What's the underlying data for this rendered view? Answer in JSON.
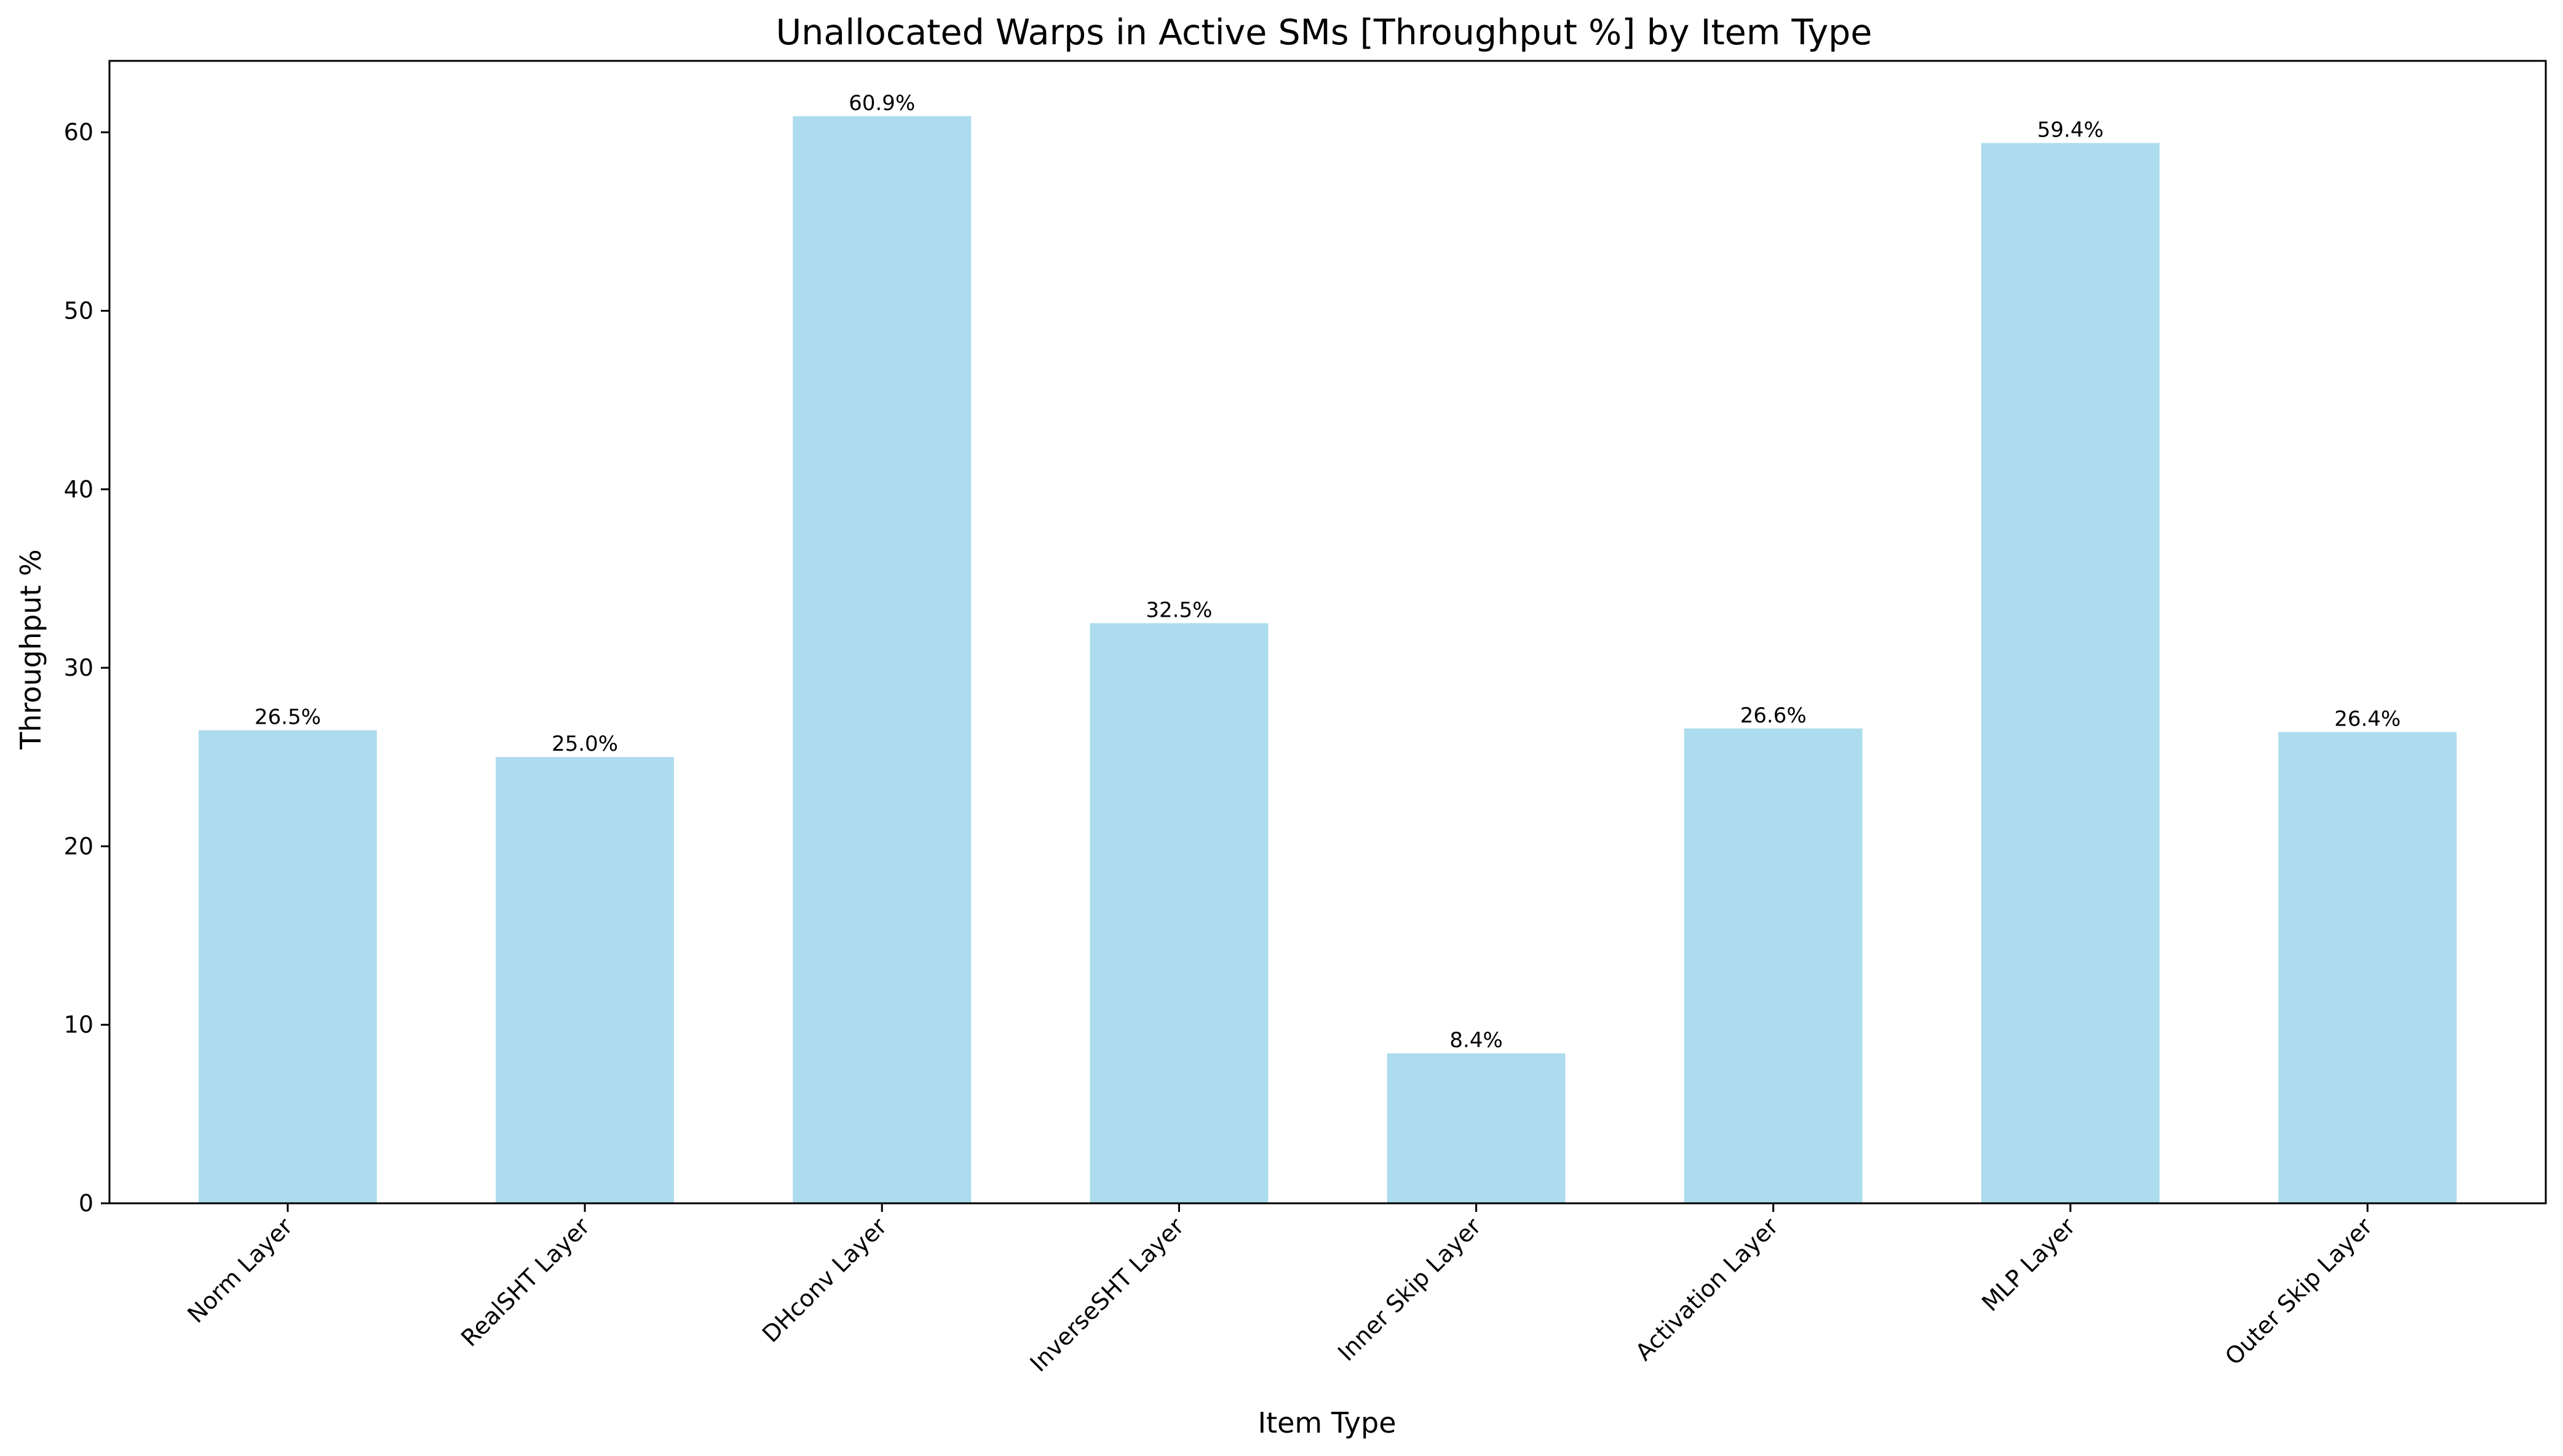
{
  "chart_data": {
    "type": "bar",
    "title": "Unallocated Warps in Active SMs [Throughput %] by Item Type",
    "xlabel": "Item Type",
    "ylabel": "Throughput %",
    "categories": [
      "Norm Layer",
      "RealSHT Layer",
      "DHconv Layer",
      "InverseSHT Layer",
      "Inner Skip Layer",
      "Activation Layer",
      "MLP Layer",
      "Outer Skip Layer"
    ],
    "values": [
      26.5,
      25.0,
      60.9,
      32.5,
      8.4,
      26.6,
      59.4,
      26.4
    ],
    "data_labels": [
      "26.5%",
      "25.0%",
      "60.9%",
      "32.5%",
      "8.4%",
      "26.6%",
      "59.4%",
      "26.4%"
    ],
    "yticks": [
      0,
      10,
      20,
      30,
      40,
      50,
      60
    ],
    "ylim": [
      0,
      64
    ],
    "grid": false,
    "legend": "none",
    "bar_color": "#ADDCEE",
    "axis_color": "#000000"
  }
}
